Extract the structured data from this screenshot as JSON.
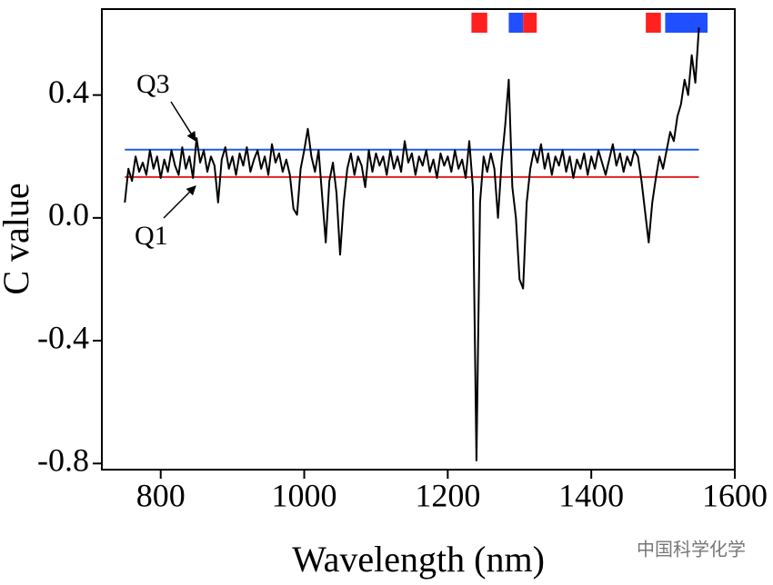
{
  "chart_data": {
    "type": "line",
    "x_label": "Wavelength (nm)",
    "y_label": "C value",
    "xlim": [
      718,
      1600
    ],
    "xticks": [
      800,
      1000,
      1200,
      1400,
      1600
    ],
    "ylim": [
      -0.82,
      0.68
    ],
    "yticks": [
      0.4,
      {
        "value": 0,
        "label": "0.0"
      },
      -0.4,
      -0.8
    ],
    "series": [
      {
        "color": "#000000",
        "x": [
          750,
          755,
          760,
          765,
          770,
          775,
          780,
          785,
          790,
          795,
          800,
          805,
          810,
          815,
          820,
          825,
          830,
          835,
          840,
          845,
          850,
          855,
          860,
          865,
          870,
          875,
          880,
          885,
          890,
          895,
          900,
          905,
          910,
          915,
          920,
          925,
          930,
          935,
          940,
          945,
          950,
          955,
          960,
          965,
          970,
          975,
          980,
          985,
          990,
          995,
          1000,
          1005,
          1010,
          1015,
          1020,
          1025,
          1030,
          1035,
          1040,
          1045,
          1050,
          1055,
          1060,
          1065,
          1070,
          1075,
          1080,
          1085,
          1090,
          1095,
          1100,
          1105,
          1110,
          1115,
          1120,
          1125,
          1130,
          1135,
          1140,
          1145,
          1150,
          1155,
          1160,
          1165,
          1170,
          1175,
          1180,
          1185,
          1190,
          1195,
          1200,
          1205,
          1210,
          1215,
          1220,
          1225,
          1230,
          1235,
          1240,
          1245,
          1250,
          1255,
          1260,
          1265,
          1270,
          1275,
          1280,
          1285,
          1290,
          1295,
          1300,
          1305,
          1310,
          1315,
          1320,
          1325,
          1330,
          1335,
          1340,
          1345,
          1350,
          1355,
          1360,
          1365,
          1370,
          1375,
          1380,
          1385,
          1390,
          1395,
          1400,
          1405,
          1410,
          1415,
          1420,
          1425,
          1430,
          1435,
          1440,
          1445,
          1450,
          1455,
          1460,
          1465,
          1470,
          1475,
          1480,
          1485,
          1490,
          1495,
          1500,
          1505,
          1510,
          1515,
          1520,
          1525,
          1530,
          1535,
          1540,
          1545,
          1550
        ],
        "values": [
          0.05,
          0.16,
          0.12,
          0.2,
          0.15,
          0.18,
          0.14,
          0.22,
          0.16,
          0.2,
          0.13,
          0.19,
          0.15,
          0.22,
          0.17,
          0.14,
          0.23,
          0.16,
          0.2,
          0.13,
          0.26,
          0.18,
          0.22,
          0.15,
          0.2,
          0.17,
          0.05,
          0.19,
          0.23,
          0.16,
          0.2,
          0.14,
          0.21,
          0.17,
          0.23,
          0.15,
          0.19,
          0.22,
          0.16,
          0.2,
          0.14,
          0.24,
          0.18,
          0.21,
          0.15,
          0.19,
          0.14,
          0.03,
          0.01,
          0.16,
          0.22,
          0.29,
          0.2,
          0.15,
          0.22,
          0.07,
          -0.08,
          0.12,
          0.18,
          0.08,
          -0.12,
          0.05,
          0.16,
          0.21,
          0.14,
          0.2,
          0.17,
          0.1,
          0.22,
          0.15,
          0.21,
          0.17,
          0.2,
          0.14,
          0.22,
          0.16,
          0.2,
          0.15,
          0.25,
          0.18,
          0.21,
          0.14,
          0.2,
          0.17,
          0.22,
          0.15,
          0.19,
          0.13,
          0.21,
          0.17,
          0.2,
          0.15,
          0.22,
          0.16,
          0.19,
          0.13,
          0.25,
          0.1,
          -0.79,
          0.05,
          0.2,
          0.15,
          0.21,
          0.16,
          0.0,
          0.18,
          0.3,
          0.45,
          0.1,
          0.0,
          -0.2,
          -0.23,
          0.05,
          0.16,
          0.22,
          0.18,
          0.24,
          0.16,
          0.21,
          0.14,
          0.2,
          0.17,
          0.22,
          0.15,
          0.2,
          0.13,
          0.19,
          0.16,
          0.21,
          0.14,
          0.2,
          0.16,
          0.22,
          0.18,
          0.14,
          0.19,
          0.24,
          0.17,
          0.21,
          0.15,
          0.2,
          0.17,
          0.22,
          0.2,
          0.12,
          0.02,
          -0.08,
          0.05,
          0.13,
          0.2,
          0.16,
          0.22,
          0.28,
          0.25,
          0.33,
          0.37,
          0.45,
          0.4,
          0.53,
          0.44,
          0.62
        ]
      }
    ],
    "reference_lines": [
      {
        "label": "Q3",
        "value": 0.222,
        "x": [
          750,
          1550
        ],
        "color": "#1f5fe0"
      },
      {
        "label": "Q1",
        "value": 0.133,
        "x": [
          750,
          1550
        ],
        "color": "#e02020"
      }
    ],
    "regions": [
      {
        "x": [
          1233,
          1255
        ],
        "color": "#ff2020"
      },
      {
        "x": [
          1285,
          1305
        ],
        "color": "#1f4fff"
      },
      {
        "x": [
          1305,
          1324
        ],
        "color": "#ff2020"
      },
      {
        "x": [
          1476,
          1497
        ],
        "color": "#ff2020"
      },
      {
        "x": [
          1503,
          1562
        ],
        "color": "#1f4fff"
      }
    ],
    "watermark": "中国科学化学"
  }
}
